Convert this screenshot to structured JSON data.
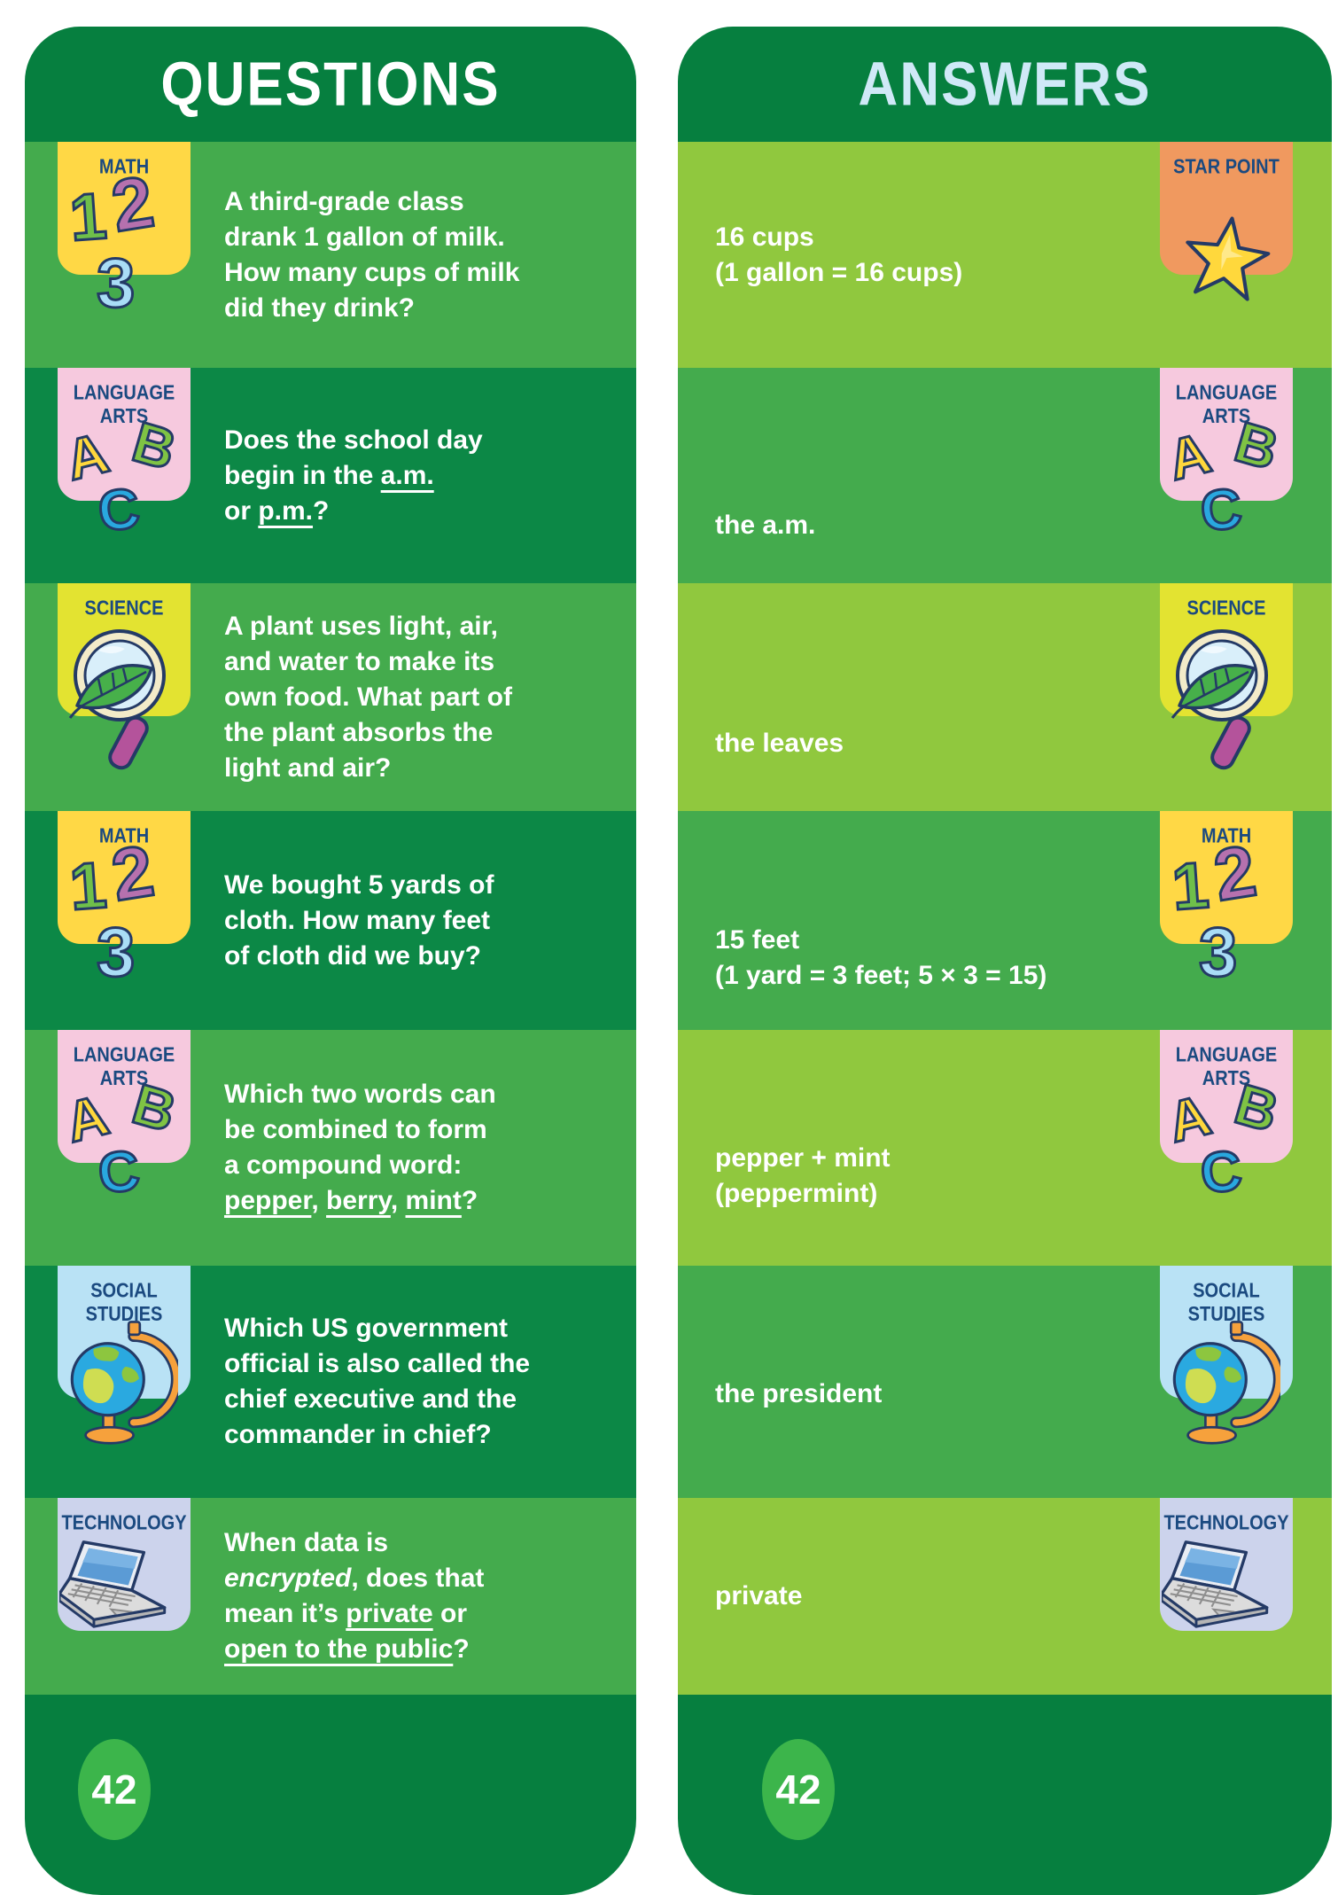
{
  "header": {
    "questions_title": "QUESTIONS",
    "answers_title": "ANSWERS"
  },
  "footer": {
    "page_number": "42"
  },
  "icons": {
    "math_numbers": [
      "1",
      "2",
      "3"
    ],
    "abc_letters": [
      "A",
      "B",
      "C"
    ]
  },
  "colors": {
    "header_footer_green": "#067f3f",
    "row_medium_green": "#44ab4d",
    "row_deep_green": "#0c8846",
    "row_yellow_green": "#90c83e",
    "badge_yellow": "#ffd845",
    "badge_pink": "#f6c9de",
    "badge_chartreuse": "#e3e331",
    "badge_light_blue": "#b9e2f5",
    "badge_lavender": "#ccd3ec",
    "badge_orange": "#f0995f",
    "badge_title_navy": "#1b4a80",
    "answers_title_blue": "#cfe9f7",
    "page_oval_green": "#3cb54b"
  },
  "rows": [
    {
      "question": {
        "subject": "MATH",
        "lines": [
          [
            [
              "A third-grade class",
              ""
            ]
          ],
          [
            [
              "drank 1 gallon of milk.",
              ""
            ]
          ],
          [
            [
              "How many cups of milk",
              ""
            ]
          ],
          [
            [
              "did they drink?",
              ""
            ]
          ]
        ]
      },
      "answer": {
        "subject": "STAR POINT",
        "lines": [
          [
            [
              "16 cups",
              ""
            ]
          ],
          [
            [
              "(1 gallon = 16 cups)",
              ""
            ]
          ]
        ]
      }
    },
    {
      "question": {
        "subject": "LANGUAGE ARTS",
        "lines": [
          [
            [
              "Does the school day",
              ""
            ]
          ],
          [
            [
              "begin in the ",
              ""
            ],
            [
              "a.m.",
              "u"
            ]
          ],
          [
            [
              "or ",
              ""
            ],
            [
              "p.m.",
              "u"
            ],
            [
              "?",
              ""
            ]
          ]
        ]
      },
      "answer": {
        "subject": "LANGUAGE ARTS",
        "lines": [
          [
            [
              "the a.m.",
              ""
            ]
          ]
        ]
      }
    },
    {
      "question": {
        "subject": "SCIENCE",
        "lines": [
          [
            [
              "A plant uses light, air,",
              ""
            ]
          ],
          [
            [
              "and water to make its",
              ""
            ]
          ],
          [
            [
              "own food. What part of",
              ""
            ]
          ],
          [
            [
              "the plant absorbs the",
              ""
            ]
          ],
          [
            [
              "light and air?",
              ""
            ]
          ]
        ]
      },
      "answer": {
        "subject": "SCIENCE",
        "lines": [
          [
            [
              "the leaves",
              ""
            ]
          ]
        ]
      }
    },
    {
      "question": {
        "subject": "MATH",
        "lines": [
          [
            [
              "We bought 5 yards of",
              ""
            ]
          ],
          [
            [
              "cloth. How many feet",
              ""
            ]
          ],
          [
            [
              "of cloth did we buy?",
              ""
            ]
          ]
        ]
      },
      "answer": {
        "subject": "MATH",
        "lines": [
          [
            [
              "15 feet",
              ""
            ]
          ],
          [
            [
              "(1 yard = 3 feet; 5 × 3 = 15)",
              ""
            ]
          ]
        ]
      }
    },
    {
      "question": {
        "subject": "LANGUAGE ARTS",
        "lines": [
          [
            [
              "Which two words can",
              ""
            ]
          ],
          [
            [
              "be combined to form",
              ""
            ]
          ],
          [
            [
              "a compound word:",
              ""
            ]
          ],
          [
            [
              "pepper",
              "u"
            ],
            [
              ", ",
              ""
            ],
            [
              "berry",
              "u"
            ],
            [
              ", ",
              ""
            ],
            [
              "mint",
              "u"
            ],
            [
              "?",
              ""
            ]
          ]
        ]
      },
      "answer": {
        "subject": "LANGUAGE ARTS",
        "lines": [
          [
            [
              "pepper + mint",
              ""
            ]
          ],
          [
            [
              "(peppermint)",
              ""
            ]
          ]
        ]
      }
    },
    {
      "question": {
        "subject": "SOCIAL STUDIES",
        "lines": [
          [
            [
              "Which US government",
              ""
            ]
          ],
          [
            [
              "official is also called the",
              ""
            ]
          ],
          [
            [
              "chief executive and the",
              ""
            ]
          ],
          [
            [
              "commander in chief?",
              ""
            ]
          ]
        ]
      },
      "answer": {
        "subject": "SOCIAL STUDIES",
        "lines": [
          [
            [
              "the president",
              ""
            ]
          ]
        ]
      }
    },
    {
      "question": {
        "subject": "TECHNOLOGY",
        "lines": [
          [
            [
              "When data is",
              ""
            ]
          ],
          [
            [
              "encrypted",
              "i"
            ],
            [
              ", does that",
              ""
            ]
          ],
          [
            [
              "mean it’s ",
              ""
            ],
            [
              "private",
              "u"
            ],
            [
              " or",
              ""
            ]
          ],
          [
            [
              "open to the public",
              "u"
            ],
            [
              "?",
              ""
            ]
          ]
        ]
      },
      "answer": {
        "subject": "TECHNOLOGY",
        "lines": [
          [
            [
              "private",
              ""
            ]
          ]
        ]
      }
    }
  ]
}
